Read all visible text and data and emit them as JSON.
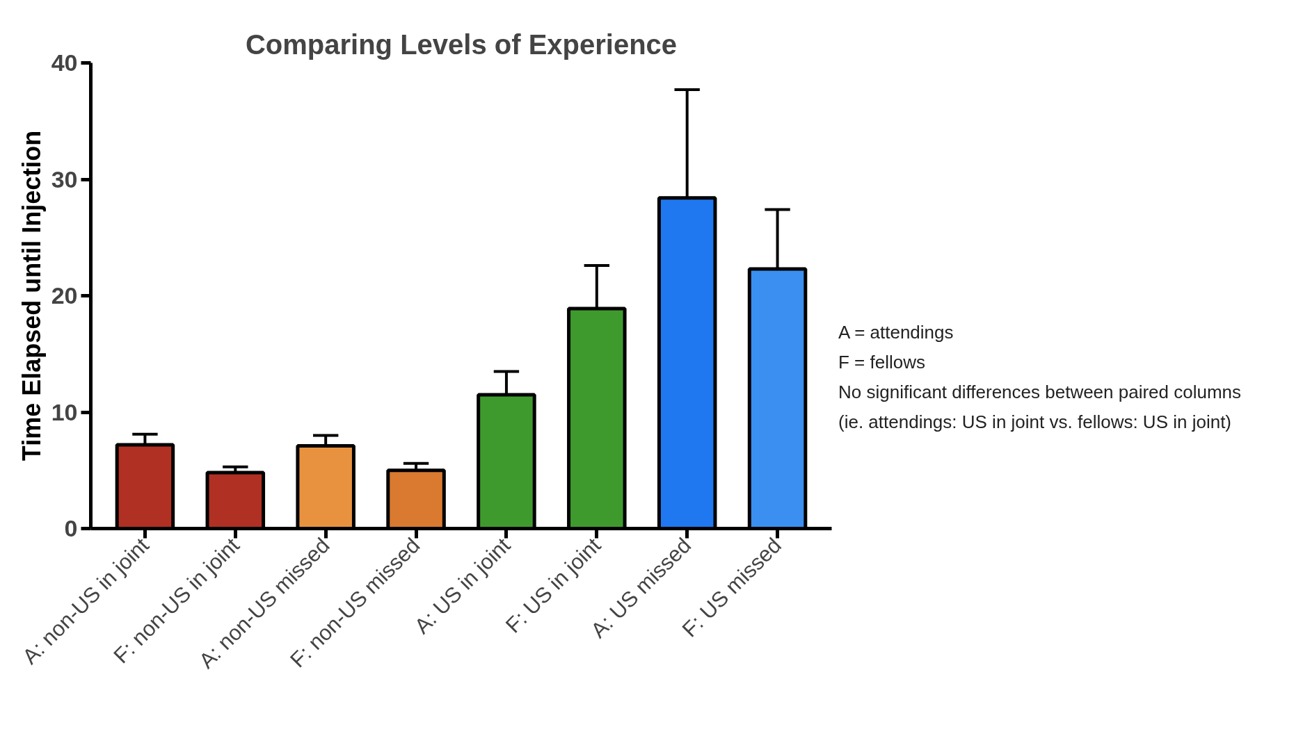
{
  "chart_data": {
    "type": "bar",
    "title": "Comparing Levels of Experience",
    "ylabel": "Time Elapsed until Injection",
    "categories": [
      "A: non-US in joint",
      "F: non-US in joint",
      "A: non-US missed",
      "F: non-US missed",
      "A: US in joint",
      "F: US in joint",
      "A: US missed",
      "F: US missed"
    ],
    "values": [
      7.2,
      4.8,
      7.1,
      5.0,
      11.5,
      18.9,
      28.4,
      22.3
    ],
    "errors": [
      [
        7.2,
        8.1
      ],
      [
        4.8,
        5.3
      ],
      [
        7.1,
        8.0
      ],
      [
        5.0,
        5.6
      ],
      [
        11.5,
        13.5
      ],
      [
        18.9,
        22.6
      ],
      [
        28.4,
        37.7
      ],
      [
        22.3,
        27.4
      ]
    ],
    "colors": [
      "#b03024",
      "#b03024",
      "#e8923f",
      "#d97a30",
      "#3f9a2e",
      "#3f9a2e",
      "#1f78f0",
      "#3a8ff0"
    ],
    "ylim": [
      0,
      40
    ],
    "yticks": [
      0,
      10,
      20,
      30,
      40
    ],
    "grid": false,
    "annotations": [
      "A = attendings",
      "F = fellows",
      "No significant differences between paired columns",
      "(ie. attendings: US in joint vs. fellows: US in joint)"
    ]
  }
}
